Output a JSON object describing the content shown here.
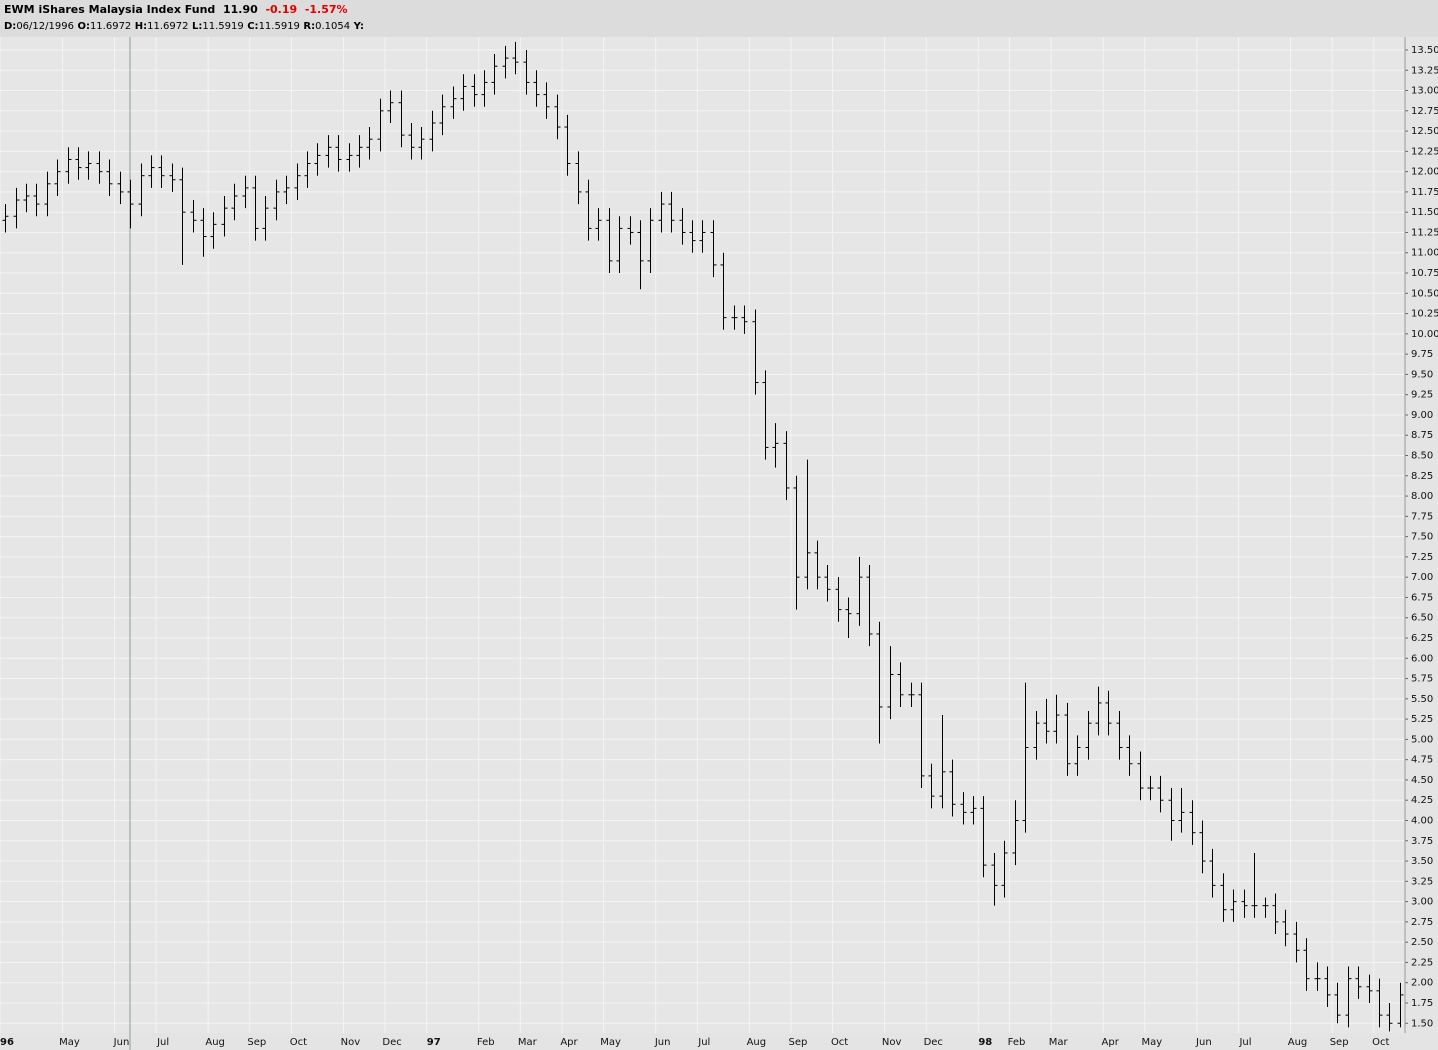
{
  "header": {
    "symbol": "EWM",
    "name": "iShares Malaysia Index Fund",
    "last": "11.90",
    "change": "-0.19",
    "change_pct": "-1.57%",
    "info": [
      [
        "D:",
        "06/12/1996"
      ],
      [
        "O:",
        "11.6972"
      ],
      [
        "H:",
        "11.6972"
      ],
      [
        "L:",
        "11.5919"
      ],
      [
        "C:",
        "11.5919"
      ],
      [
        "R:",
        "0.1054"
      ],
      [
        "Y:"
      ]
    ]
  },
  "chart_data": {
    "type": "ohlc",
    "color": "#000000",
    "grid": true,
    "categories": [
      "96",
      null,
      null,
      null,
      null,
      null,
      "May",
      null,
      null,
      null,
      null,
      "Jun",
      null,
      null,
      null,
      "Jul",
      null,
      null,
      null,
      null,
      "Aug",
      null,
      null,
      null,
      "Sep",
      null,
      null,
      null,
      "Oct",
      null,
      null,
      null,
      null,
      "Nov",
      null,
      null,
      null,
      "Dec",
      null,
      null,
      null,
      "97",
      null,
      null,
      null,
      null,
      "Feb",
      null,
      null,
      null,
      "Mar",
      null,
      null,
      null,
      "Apr",
      null,
      null,
      null,
      "May",
      null,
      null,
      null,
      null,
      "Jun",
      null,
      null,
      null,
      "Jul",
      null,
      null,
      null,
      null,
      "Aug",
      null,
      null,
      null,
      "Sep",
      null,
      null,
      null,
      "Oct",
      null,
      null,
      null,
      null,
      "Nov",
      null,
      null,
      null,
      "Dec",
      null,
      null,
      null,
      null,
      "98",
      null,
      null,
      "Feb",
      null,
      null,
      null,
      "Mar",
      null,
      null,
      null,
      null,
      "Apr",
      null,
      null,
      null,
      "May",
      null,
      null,
      null,
      null,
      "Jun",
      null,
      null,
      null,
      "Jul",
      null,
      null,
      null,
      null,
      "Aug",
      null,
      null,
      null,
      "Sep",
      null,
      null,
      null,
      "Oct",
      null,
      null
    ],
    "open": [
      11.4,
      11.45,
      11.65,
      11.7,
      11.6,
      11.85,
      12.0,
      12.15,
      12.05,
      12.1,
      12.0,
      11.85,
      11.75,
      11.6,
      11.95,
      12.05,
      11.95,
      11.9,
      11.5,
      11.4,
      11.2,
      11.35,
      11.55,
      11.7,
      11.8,
      11.3,
      11.55,
      11.75,
      11.8,
      11.95,
      12.1,
      12.2,
      12.3,
      12.15,
      12.2,
      12.3,
      12.4,
      12.75,
      12.85,
      12.45,
      12.3,
      12.4,
      12.6,
      12.8,
      12.9,
      13.05,
      12.95,
      13.1,
      13.3,
      13.4,
      13.35,
      13.1,
      12.95,
      12.8,
      12.55,
      12.1,
      11.75,
      11.3,
      11.4,
      10.9,
      11.3,
      11.25,
      10.9,
      11.4,
      11.6,
      11.4,
      11.25,
      11.15,
      11.25,
      10.85,
      10.2,
      10.2,
      10.15,
      9.4,
      8.6,
      8.65,
      8.1,
      7.0,
      7.3,
      7.0,
      6.85,
      6.6,
      6.55,
      7.0,
      6.3,
      5.4,
      5.8,
      5.55,
      5.55,
      4.55,
      4.3,
      4.6,
      4.2,
      4.1,
      4.15,
      3.45,
      3.2,
      3.6,
      4.0,
      4.9,
      5.2,
      5.1,
      5.3,
      4.7,
      4.9,
      5.2,
      5.45,
      5.2,
      4.9,
      4.7,
      4.4,
      4.4,
      4.25,
      4.0,
      4.1,
      3.85,
      3.5,
      3.2,
      2.9,
      3.0,
      2.95,
      2.95,
      2.95,
      2.75,
      2.6,
      2.4,
      2.05,
      2.05,
      1.85,
      1.6,
      2.05,
      1.95,
      1.9,
      1.6,
      1.5
    ],
    "high": [
      11.6,
      11.8,
      11.85,
      11.85,
      12.0,
      12.15,
      12.3,
      12.3,
      12.25,
      12.25,
      12.15,
      12.0,
      11.9,
      12.1,
      12.2,
      12.2,
      12.1,
      12.05,
      11.65,
      11.55,
      11.5,
      11.7,
      11.85,
      11.95,
      11.95,
      11.7,
      11.9,
      11.95,
      12.1,
      12.25,
      12.35,
      12.45,
      12.45,
      12.35,
      12.45,
      12.55,
      12.9,
      13.0,
      13.0,
      12.6,
      12.55,
      12.75,
      12.95,
      13.05,
      13.2,
      13.2,
      13.25,
      13.45,
      13.55,
      13.6,
      13.5,
      13.25,
      13.1,
      12.95,
      12.7,
      12.25,
      11.9,
      11.55,
      11.55,
      11.45,
      11.45,
      11.4,
      11.55,
      11.75,
      11.75,
      11.55,
      11.4,
      11.4,
      11.4,
      11.0,
      10.35,
      10.35,
      10.3,
      9.55,
      8.9,
      8.8,
      8.25,
      8.45,
      7.45,
      7.15,
      7.0,
      6.75,
      7.25,
      7.15,
      6.45,
      6.15,
      5.95,
      5.7,
      5.7,
      4.7,
      5.3,
      4.75,
      4.35,
      4.3,
      4.3,
      3.6,
      3.75,
      4.25,
      5.7,
      5.35,
      5.5,
      5.55,
      5.45,
      5.05,
      5.35,
      5.65,
      5.6,
      5.35,
      5.05,
      4.85,
      4.55,
      4.55,
      4.4,
      4.4,
      4.25,
      4.0,
      3.65,
      3.35,
      3.15,
      3.15,
      3.6,
      3.05,
      3.1,
      2.9,
      2.75,
      2.55,
      2.25,
      2.2,
      2.0,
      2.2,
      2.2,
      2.1,
      2.05,
      1.75,
      2.0
    ],
    "low": [
      11.25,
      11.3,
      11.5,
      11.45,
      11.45,
      11.7,
      11.85,
      11.9,
      11.9,
      11.85,
      11.7,
      11.6,
      11.3,
      11.45,
      11.8,
      11.8,
      11.75,
      10.85,
      11.25,
      10.95,
      11.05,
      11.2,
      11.4,
      11.55,
      11.15,
      11.15,
      11.4,
      11.6,
      11.65,
      11.8,
      11.95,
      12.05,
      12.0,
      12.0,
      12.05,
      12.15,
      12.25,
      12.6,
      12.3,
      12.15,
      12.15,
      12.25,
      12.45,
      12.65,
      12.75,
      12.8,
      12.8,
      12.95,
      13.15,
      13.2,
      12.95,
      12.8,
      12.65,
      12.4,
      11.95,
      11.6,
      11.15,
      11.15,
      10.75,
      10.75,
      11.1,
      10.55,
      10.75,
      11.25,
      11.25,
      11.1,
      11.0,
      11.0,
      10.7,
      10.05,
      10.05,
      10.0,
      9.25,
      8.45,
      8.35,
      7.95,
      6.6,
      6.85,
      6.85,
      6.7,
      6.45,
      6.25,
      6.4,
      6.15,
      4.95,
      5.25,
      5.4,
      5.4,
      4.4,
      4.15,
      4.15,
      4.05,
      3.95,
      3.95,
      3.3,
      2.95,
      3.05,
      3.45,
      3.85,
      4.75,
      4.95,
      4.95,
      4.55,
      4.55,
      4.75,
      5.05,
      5.05,
      4.75,
      4.55,
      4.25,
      4.25,
      4.1,
      3.75,
      3.85,
      3.7,
      3.35,
      3.05,
      2.75,
      2.75,
      2.8,
      2.8,
      2.8,
      2.6,
      2.45,
      2.25,
      1.9,
      1.9,
      1.7,
      1.5,
      1.45,
      1.8,
      1.75,
      1.45,
      1.4,
      1.45
    ],
    "close": [
      11.45,
      11.65,
      11.7,
      11.6,
      11.85,
      12.0,
      12.15,
      12.05,
      12.1,
      12.0,
      11.85,
      11.75,
      11.6,
      11.95,
      12.05,
      11.95,
      11.9,
      11.5,
      11.4,
      11.2,
      11.35,
      11.55,
      11.7,
      11.8,
      11.3,
      11.55,
      11.75,
      11.8,
      11.95,
      12.1,
      12.2,
      12.3,
      12.15,
      12.2,
      12.3,
      12.4,
      12.75,
      12.85,
      12.45,
      12.3,
      12.4,
      12.6,
      12.8,
      12.9,
      13.05,
      12.95,
      13.1,
      13.3,
      13.4,
      13.35,
      13.1,
      12.95,
      12.8,
      12.55,
      12.1,
      11.75,
      11.3,
      11.4,
      10.9,
      11.3,
      11.25,
      10.9,
      11.4,
      11.6,
      11.4,
      11.25,
      11.15,
      11.25,
      10.85,
      10.2,
      10.2,
      10.15,
      9.4,
      8.6,
      8.65,
      8.1,
      7.0,
      7.3,
      7.0,
      6.85,
      6.6,
      6.55,
      7.0,
      6.3,
      5.4,
      5.8,
      5.55,
      5.55,
      4.55,
      4.3,
      4.6,
      4.2,
      4.1,
      4.15,
      3.45,
      3.2,
      3.6,
      4.0,
      4.9,
      5.2,
      5.1,
      5.3,
      4.7,
      4.9,
      5.2,
      5.45,
      5.2,
      4.9,
      4.7,
      4.4,
      4.4,
      4.25,
      4.0,
      4.1,
      3.85,
      3.5,
      3.2,
      2.9,
      3.0,
      2.95,
      2.95,
      2.95,
      2.75,
      2.6,
      2.4,
      2.05,
      2.05,
      1.85,
      1.6,
      2.05,
      1.95,
      1.9,
      1.6,
      1.5,
      1.85
    ],
    "ylim": [
      1.38,
      13.66
    ],
    "yticks": [
      {
        "value": 1.5,
        "label": "1.50"
      },
      {
        "value": 1.75,
        "label": "1.75"
      },
      {
        "value": 2,
        "label": "2.00"
      },
      {
        "value": 2.25,
        "label": "2.25"
      },
      {
        "value": 2.5,
        "label": "2.50"
      },
      {
        "value": 2.75,
        "label": "2.75"
      },
      {
        "value": 3,
        "label": "3.00"
      },
      {
        "value": 3.25,
        "label": "3.25"
      },
      {
        "value": 3.5,
        "label": "3.50"
      },
      {
        "value": 3.75,
        "label": "3.75"
      },
      {
        "value": 4,
        "label": "4.00"
      },
      {
        "value": 4.25,
        "label": "4.25"
      },
      {
        "value": 4.5,
        "label": "4.50"
      },
      {
        "value": 4.75,
        "label": "4.75"
      },
      {
        "value": 5,
        "label": "5.00"
      },
      {
        "value": 5.25,
        "label": "5.25"
      },
      {
        "value": 5.5,
        "label": "5.50"
      },
      {
        "value": 5.75,
        "label": "5.75"
      },
      {
        "value": 6,
        "label": "6.00"
      },
      {
        "value": 6.25,
        "label": "6.25"
      },
      {
        "value": 6.5,
        "label": "6.50"
      },
      {
        "value": 6.75,
        "label": "6.75"
      },
      {
        "value": 7,
        "label": "7.00"
      },
      {
        "value": 7.25,
        "label": "7.25"
      },
      {
        "value": 7.5,
        "label": "7.50"
      },
      {
        "value": 7.75,
        "label": "7.75"
      },
      {
        "value": 8,
        "label": "8.00"
      },
      {
        "value": 8.25,
        "label": "8.25"
      },
      {
        "value": 8.5,
        "label": "8.50"
      },
      {
        "value": 8.75,
        "label": "8.75"
      },
      {
        "value": 9,
        "label": "9.00"
      },
      {
        "value": 9.25,
        "label": "9.25"
      },
      {
        "value": 9.5,
        "label": "9.50"
      },
      {
        "value": 9.75,
        "label": "9.75"
      },
      {
        "value": 10,
        "label": "10.00"
      },
      {
        "value": 10.25,
        "label": "10.25"
      },
      {
        "value": 10.5,
        "label": "10.50"
      },
      {
        "value": 10.75,
        "label": "10.75"
      },
      {
        "value": 11,
        "label": "11.00"
      },
      {
        "value": 11.25,
        "label": "11.25"
      },
      {
        "value": 11.5,
        "label": "11.50"
      },
      {
        "value": 11.75,
        "label": "11.75"
      },
      {
        "value": 12,
        "label": "12.00"
      },
      {
        "value": 12.25,
        "label": "12.25"
      },
      {
        "value": 12.5,
        "label": "12.50"
      },
      {
        "value": 12.75,
        "label": "12.75"
      },
      {
        "value": 13,
        "label": "13.00"
      },
      {
        "value": 13.25,
        "label": "13.25"
      },
      {
        "value": 13.5,
        "label": "13.50"
      }
    ]
  }
}
